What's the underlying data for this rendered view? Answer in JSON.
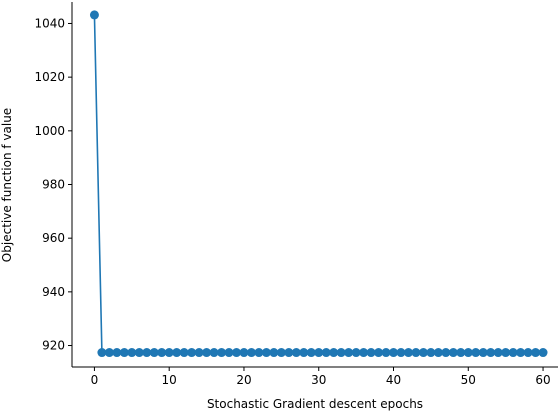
{
  "chart_data": {
    "type": "line",
    "title": "",
    "xlabel": "Stochastic Gradient descent epochs",
    "ylabel": "Objective function f value",
    "xlim": [
      -3,
      62
    ],
    "ylim": [
      912,
      1048
    ],
    "xticks": [
      0,
      10,
      20,
      30,
      40,
      50,
      60
    ],
    "yticks": [
      920,
      940,
      960,
      980,
      1000,
      1020,
      1040
    ],
    "xtick_labels": [
      "0",
      "10",
      "20",
      "30",
      "40",
      "50",
      "60"
    ],
    "ytick_labels": [
      "920",
      "940",
      "960",
      "980",
      "1000",
      "1020",
      "1040"
    ],
    "grid": false,
    "series": [
      {
        "color": "#1f77b4",
        "marker": "circle",
        "x": [
          0,
          1,
          2,
          3,
          4,
          5,
          6,
          7,
          8,
          9,
          10,
          11,
          12,
          13,
          14,
          15,
          16,
          17,
          18,
          19,
          20,
          21,
          22,
          23,
          24,
          25,
          26,
          27,
          28,
          29,
          30,
          31,
          32,
          33,
          34,
          35,
          36,
          37,
          38,
          39,
          40,
          41,
          42,
          43,
          44,
          45,
          46,
          47,
          48,
          49,
          50,
          51,
          52,
          53,
          54,
          55,
          56,
          57,
          58,
          59,
          60
        ],
        "y": [
          1043.2,
          917.4,
          917.4,
          917.4,
          917.4,
          917.4,
          917.4,
          917.4,
          917.4,
          917.4,
          917.4,
          917.4,
          917.4,
          917.4,
          917.4,
          917.4,
          917.4,
          917.4,
          917.4,
          917.4,
          917.4,
          917.4,
          917.4,
          917.4,
          917.4,
          917.4,
          917.4,
          917.4,
          917.4,
          917.4,
          917.4,
          917.4,
          917.4,
          917.4,
          917.4,
          917.4,
          917.4,
          917.4,
          917.4,
          917.4,
          917.4,
          917.4,
          917.4,
          917.4,
          917.4,
          917.4,
          917.4,
          917.4,
          917.4,
          917.4,
          917.4,
          917.4,
          917.4,
          917.4,
          917.4,
          917.4,
          917.4,
          917.4,
          917.4,
          917.4,
          917.4
        ]
      }
    ]
  }
}
